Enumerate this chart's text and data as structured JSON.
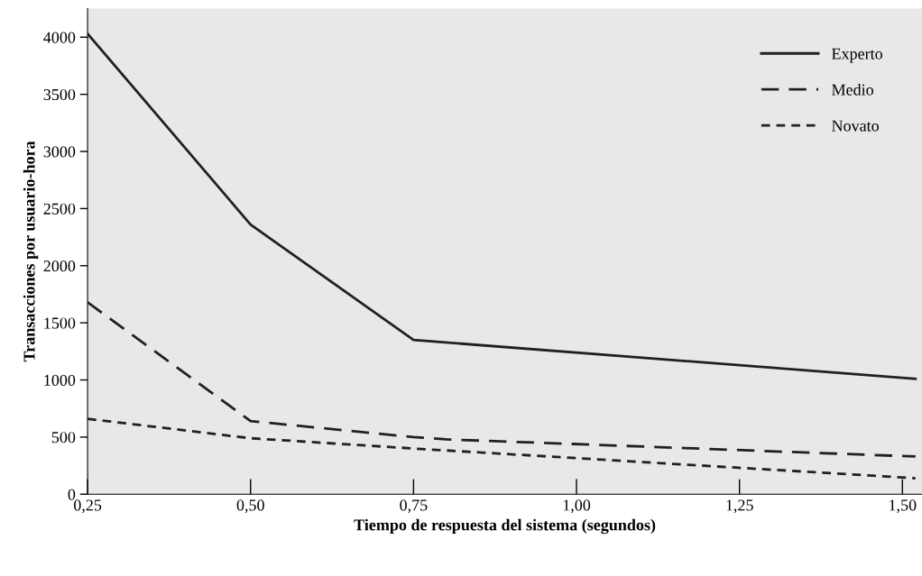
{
  "chart_data": {
    "type": "line",
    "xlabel": "Tiempo de respuesta del sistema (segundos)",
    "ylabel": "Transacciones por usuario-hora",
    "xlim": [
      0.25,
      1.53
    ],
    "ylim": [
      0,
      4250
    ],
    "xticks": [
      {
        "value": 0.25,
        "label": "0,25"
      },
      {
        "value": 0.5,
        "label": "0,50"
      },
      {
        "value": 0.75,
        "label": "0,75"
      },
      {
        "value": 1.0,
        "label": "1,00"
      },
      {
        "value": 1.25,
        "label": "1,25"
      },
      {
        "value": 1.5,
        "label": "1,50"
      }
    ],
    "yticks": [
      0,
      500,
      1000,
      1500,
      2000,
      2500,
      3000,
      3500,
      4000
    ],
    "grid": false,
    "legend": "top right",
    "marker": "none",
    "series": [
      {
        "name": "Experto",
        "color": "#231f20",
        "line_style": "solid",
        "x": [
          0.25,
          0.5,
          0.75,
          1.52
        ],
        "values": [
          4030,
          2360,
          1350,
          1010
        ]
      },
      {
        "name": "Medio",
        "color": "#231f20",
        "line_style": "dashed",
        "x": [
          0.25,
          0.5,
          0.75,
          0.8,
          1.52
        ],
        "values": [
          1680,
          640,
          500,
          480,
          330
        ]
      },
      {
        "name": "Novato",
        "color": "#231f20",
        "line_style": "dotted",
        "x": [
          0.25,
          0.5,
          0.75,
          1.52
        ],
        "values": [
          660,
          490,
          400,
          140
        ]
      }
    ]
  }
}
